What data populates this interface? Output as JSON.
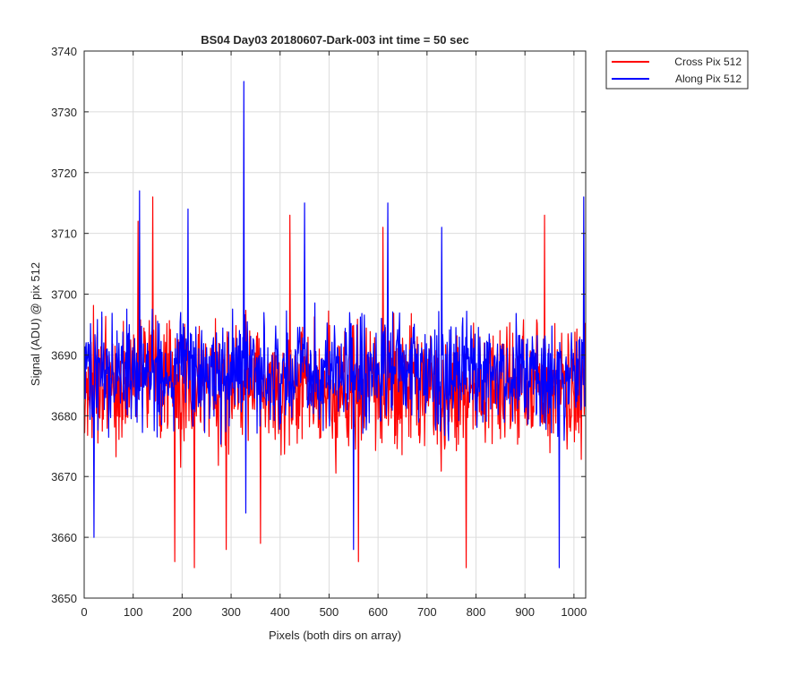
{
  "chart_data": {
    "type": "line",
    "title": "BS04 Day03 20180607-Dark-003 int time = 50 sec",
    "xlabel": "Pixels (both dirs on array)",
    "ylabel": "Signal (ADU) @ pix 512",
    "xlim": [
      0,
      1024
    ],
    "ylim": [
      3650,
      3740
    ],
    "xticks": [
      0,
      100,
      200,
      300,
      400,
      500,
      600,
      700,
      800,
      900,
      1000
    ],
    "yticks": [
      3650,
      3660,
      3670,
      3680,
      3690,
      3700,
      3710,
      3720,
      3730,
      3740
    ],
    "grid": true,
    "legend_position": "outside-top-right",
    "x": [
      0,
      32,
      64,
      96,
      128,
      160,
      192,
      224,
      256,
      288,
      320,
      352,
      384,
      416,
      448,
      480,
      512,
      544,
      576,
      608,
      640,
      672,
      704,
      736,
      768,
      800,
      832,
      864,
      896,
      928,
      960,
      992,
      1023
    ],
    "series": [
      {
        "name": "Cross Pix 512",
        "color": "#ff0000",
        "noise_amplitude_adu": 9,
        "values": [
          3685,
          3684,
          3686,
          3685,
          3687,
          3686,
          3684,
          3685,
          3686,
          3684,
          3685,
          3686,
          3685,
          3684,
          3686,
          3685,
          3684,
          3685,
          3686,
          3685,
          3684,
          3686,
          3685,
          3684,
          3685,
          3686,
          3685,
          3684,
          3685,
          3686,
          3685,
          3684,
          3685
        ],
        "peaks_x": [
          110,
          140,
          420,
          560,
          780,
          610,
          940,
          225,
          185,
          290,
          360
        ],
        "peaks_y": [
          3712,
          3716,
          3713,
          3656,
          3655,
          3711,
          3713,
          3655,
          3656,
          3658,
          3659
        ]
      },
      {
        "name": "Along Pix 512",
        "color": "#0000ff",
        "noise_amplitude_adu": 8,
        "values": [
          3686,
          3687,
          3686,
          3688,
          3687,
          3686,
          3687,
          3688,
          3687,
          3686,
          3688,
          3687,
          3686,
          3687,
          3688,
          3686,
          3687,
          3688,
          3686,
          3687,
          3688,
          3687,
          3686,
          3687,
          3688,
          3687,
          3686,
          3687,
          3688,
          3686,
          3687,
          3688,
          3687
        ],
        "peaks_x": [
          326,
          113,
          212,
          450,
          620,
          970,
          1020,
          550,
          20,
          330,
          730
        ],
        "peaks_y": [
          3735,
          3717,
          3714,
          3715,
          3715,
          3655,
          3716,
          3658,
          3660,
          3664,
          3711
        ]
      }
    ]
  }
}
